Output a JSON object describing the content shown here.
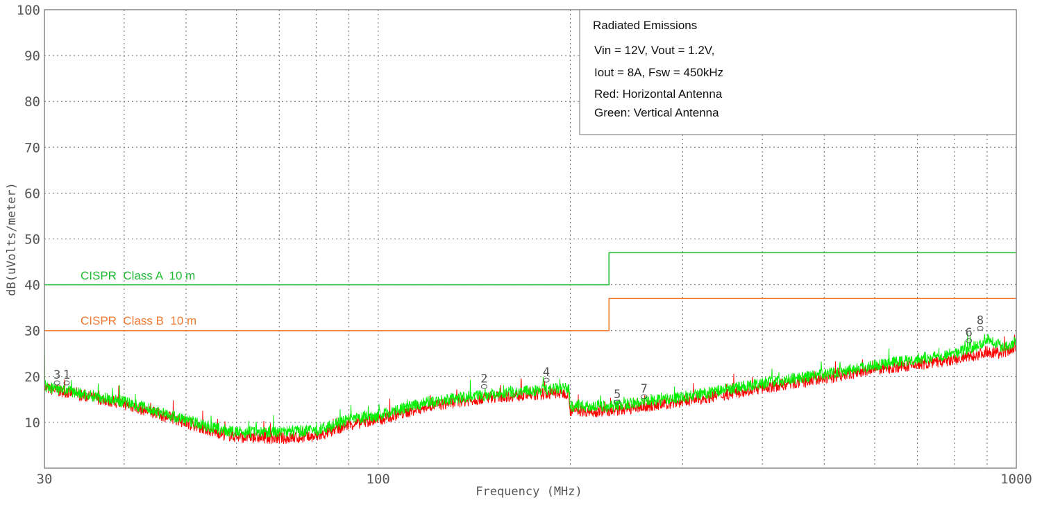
{
  "chart_data": {
    "type": "line",
    "xscale": "log",
    "xlim": [
      30,
      1000
    ],
    "ylim": [
      0,
      100
    ],
    "grid": true,
    "xlabel": "Frequency (MHz)",
    "ylabel": "dB(uVolts/meter)",
    "xticks": [
      "30",
      "100",
      "1000"
    ],
    "yticks": [
      "10",
      "20",
      "30",
      "40",
      "50",
      "60",
      "70",
      "80",
      "90",
      "100"
    ],
    "legend": {
      "placement": "top-right",
      "lines": [
        "Radiated Emissions",
        "Vin = 12V,   Vout = 1.2V,",
        "Iout = 8A,   Fsw = 450kHz",
        "Red: Horizontal Antenna",
        "Green: Vertical Antenna"
      ]
    },
    "limits": [
      {
        "name": "CISPR  Class A  10 m",
        "color": "#22bb33",
        "points": [
          [
            30,
            40
          ],
          [
            230,
            40
          ],
          [
            230,
            47
          ],
          [
            1000,
            47
          ]
        ]
      },
      {
        "name": "CISPR  Class B  10 m",
        "color": "#f07830",
        "points": [
          [
            30,
            30
          ],
          [
            230,
            30
          ],
          [
            230,
            37
          ],
          [
            1000,
            37
          ]
        ]
      }
    ],
    "series": [
      {
        "color": "#ff0000",
        "x": [
          30,
          40,
          50,
          55,
          60,
          70,
          80,
          90,
          100,
          120,
          150,
          199,
          200,
          230,
          300,
          400,
          500,
          600,
          800,
          880,
          900,
          950,
          1000
        ],
        "y": [
          17.5,
          14,
          10,
          8,
          6.8,
          6.5,
          6.8,
          9.5,
          10.5,
          13.5,
          15.5,
          16.5,
          12.5,
          12.5,
          14.5,
          17.5,
          19.5,
          21.5,
          23.5,
          25,
          25.5,
          25,
          26.5
        ]
      },
      {
        "color": "#00ee00",
        "x": [
          30,
          40,
          50,
          55,
          60,
          70,
          80,
          90,
          100,
          120,
          150,
          199,
          200,
          230,
          300,
          400,
          500,
          600,
          800,
          880,
          900,
          950,
          1000
        ],
        "y": [
          17.8,
          14.5,
          10.5,
          8.8,
          7.8,
          8,
          8.2,
          10.5,
          11.5,
          14.5,
          16.2,
          17.5,
          13.5,
          13.5,
          15.5,
          18.5,
          20.5,
          22.5,
          25,
          27,
          28.5,
          26.5,
          27.5
        ]
      }
    ],
    "markers": [
      {
        "label": "3",
        "x": 31.4,
        "y": 18.6
      },
      {
        "label": "1",
        "x": 32.5,
        "y": 18.6
      },
      {
        "label": "2",
        "x": 146.6,
        "y": 17.8
      },
      {
        "label": "4",
        "x": 183.5,
        "y": 19.2
      },
      {
        "label": "5",
        "x": 237,
        "y": 14.4
      },
      {
        "label": "7",
        "x": 261,
        "y": 15.6
      },
      {
        "label": "6",
        "x": 843,
        "y": 27.8
      },
      {
        "label": "8",
        "x": 878,
        "y": 30.5
      }
    ]
  }
}
